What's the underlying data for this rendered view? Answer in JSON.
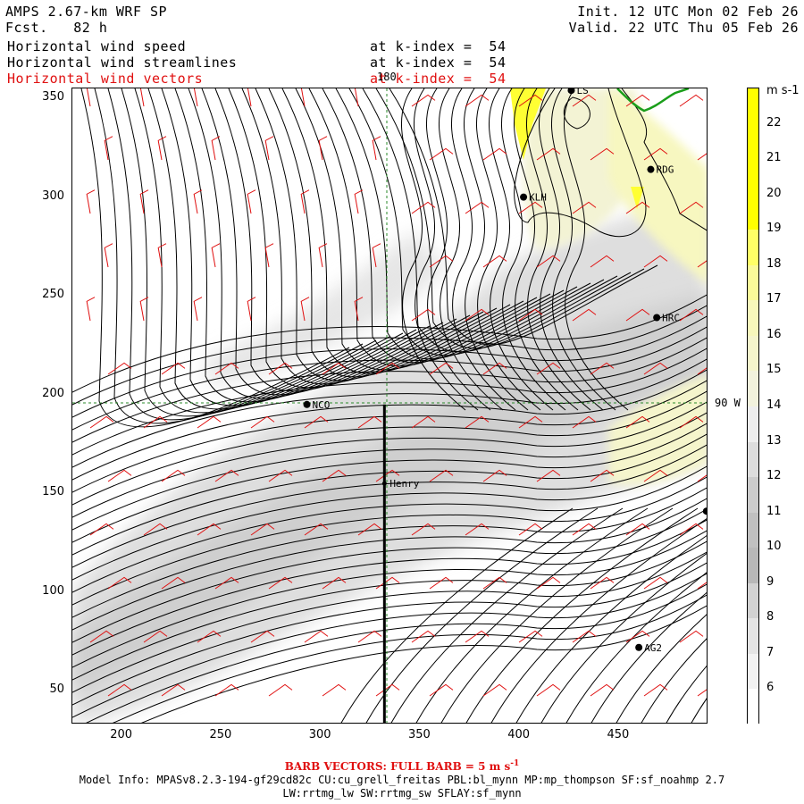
{
  "header": {
    "model": "AMPS 2.67-km WRF SP",
    "forecast": "Fcst.   82 h",
    "init": "Init. 12 UTC Mon 02 Feb 26",
    "valid": "Valid. 22 UTC Thu 05 Feb 26",
    "fields": [
      {
        "name": "Horizontal wind speed",
        "level": "at k-index =  54",
        "color": "#000000"
      },
      {
        "name": "Horizontal wind streamlines",
        "level": "at k-index =  54",
        "color": "#000000"
      },
      {
        "name": "Horizontal wind vectors",
        "level": "at k-index =  54",
        "color": "#e01010"
      }
    ]
  },
  "map": {
    "x_ticks": [
      "200",
      "250",
      "300",
      "350",
      "400",
      "450"
    ],
    "y_ticks": [
      "350",
      "300",
      "250",
      "200",
      "150",
      "100",
      "50"
    ],
    "x_range": [
      175,
      495
    ],
    "y_range": [
      33,
      355
    ],
    "grid_labels": {
      "meridian": "180",
      "parallel": "90 W"
    },
    "stations": [
      {
        "id": "NCO",
        "x": 293,
        "y": 195
      },
      {
        "id": "KLH",
        "x": 402,
        "y": 300
      },
      {
        "id": "RDG",
        "x": 466,
        "y": 314
      },
      {
        "id": "HRC",
        "x": 469,
        "y": 239
      },
      {
        "id": "AG2",
        "x": 460,
        "y": 72
      },
      {
        "id": "Henry",
        "x": 332,
        "y": 155
      },
      {
        "id": "",
        "x": 494,
        "y": 141
      },
      {
        "id": "LS",
        "x": 426,
        "y": 354
      }
    ],
    "cross_section": {
      "x": 332,
      "y_from": 33,
      "y_to": 195
    }
  },
  "colorbar": {
    "unit": "m s-1",
    "levels": [
      "22",
      "21",
      "20",
      "19",
      "18",
      "17",
      "16",
      "15",
      "14",
      "13",
      "12",
      "11",
      "10",
      "9",
      "8",
      "7",
      "6"
    ],
    "colors": [
      "#ffff00",
      "#ffff00",
      "#ffff00",
      "#ffff00",
      "#ffff66",
      "#fafa99",
      "#f7f7bb",
      "#f5f5cc",
      "#f2f2dd",
      "#eeeeee",
      "#dddddd",
      "#cccccc",
      "#c0c0c0",
      "#b8b8b8",
      "#d2d2d2",
      "#e4e4e4",
      "#f2f2f2",
      "#ffffff"
    ]
  },
  "footer": {
    "barb": "BARB VECTORS:  FULL BARB = 5 m s",
    "barb_sup": "-1",
    "model_info": "Model Info: MPASv8.2.3-194-gf29cd82c CU:cu_grell_freitas PBL:bl_mynn MP:mp_thompson SF:sf_noahmp 2.7",
    "model_info2": "LW:rrtmg_lw SW:rrtmg_sw SFLAY:sf_mynn"
  }
}
